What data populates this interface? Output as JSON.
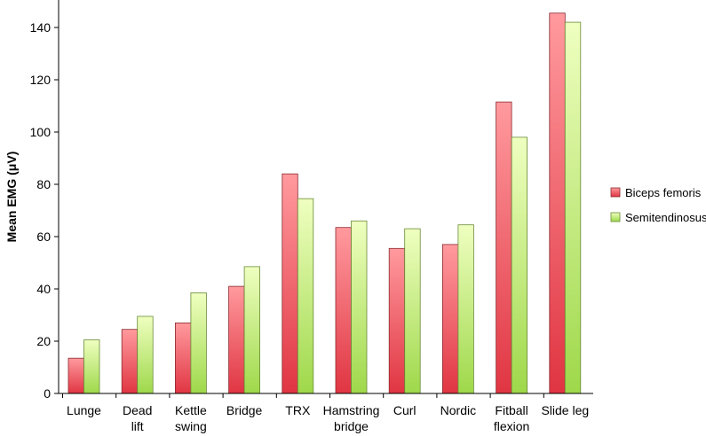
{
  "chart_data": {
    "type": "bar",
    "title": "",
    "xlabel": "",
    "ylabel": "Mean EMG (μV)",
    "ylim": [
      0,
      150
    ],
    "yticks": [
      0,
      20,
      40,
      60,
      80,
      100,
      120,
      140
    ],
    "grid": false,
    "legend_position": "right",
    "categories": [
      [
        "Lunge"
      ],
      [
        "Dead",
        "lift"
      ],
      [
        "Kettle",
        "swing"
      ],
      [
        "Bridge"
      ],
      [
        "TRX"
      ],
      [
        "Hamstring",
        "bridge"
      ],
      [
        "Curl"
      ],
      [
        "Nordic"
      ],
      [
        "Fitball",
        "flexion"
      ],
      [
        "Slide leg"
      ]
    ],
    "series": [
      {
        "name": "Biceps femoris",
        "color_top": "#ff9a9e",
        "color_bottom": "#e03542",
        "stroke": "#8a2a30",
        "values": [
          13.5,
          24.5,
          27,
          41,
          84,
          63.5,
          55.5,
          57,
          111.5,
          145.5
        ]
      },
      {
        "name": "Semitendinosus",
        "color_top": "#efffc0",
        "color_bottom": "#9ed84a",
        "stroke": "#6a8a38",
        "values": [
          20.5,
          29.5,
          38.5,
          48.5,
          74.5,
          66,
          63,
          64.5,
          98,
          142
        ]
      }
    ]
  }
}
